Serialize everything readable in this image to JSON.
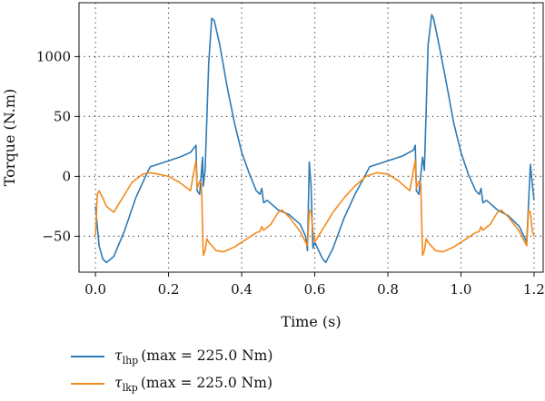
{
  "chart_data": {
    "type": "line",
    "xlabel": "Time (s)",
    "ylabel": "Torque (N.m)",
    "xlim": [
      -0.045,
      1.225
    ],
    "xticks": [
      0.0,
      0.2,
      0.4,
      0.6,
      0.8,
      1.0,
      1.2
    ],
    "xtick_labels": [
      "0.0",
      "0.2",
      "0.4",
      "0.6",
      "0.8",
      "1.0",
      "1.2"
    ],
    "yticks": [
      -50,
      0,
      50,
      1000
    ],
    "ytick_labels": [
      "−50",
      "0",
      "50",
      "1000"
    ],
    "ylim_display": [
      -80,
      145
    ],
    "y_axis_note": "top tick is printed as 1000 but sits where 100 would be",
    "grid": true,
    "legend_position": "below",
    "series": [
      {
        "name": "lhp",
        "legend_symbol": "τ",
        "legend_subscript": "lhp",
        "legend_suffix": "(max = 225.0 Nm)",
        "color": "#2E7AB5",
        "points": [
          [
            0.0,
            -25
          ],
          [
            0.01,
            -58
          ],
          [
            0.02,
            -69
          ],
          [
            0.03,
            -72
          ],
          [
            0.05,
            -67
          ],
          [
            0.08,
            -45
          ],
          [
            0.11,
            -18
          ],
          [
            0.14,
            2
          ],
          [
            0.15,
            8
          ],
          [
            0.17,
            10
          ],
          [
            0.2,
            13
          ],
          [
            0.23,
            16
          ],
          [
            0.26,
            20
          ],
          [
            0.275,
            26
          ],
          [
            0.278,
            -12
          ],
          [
            0.285,
            -15
          ],
          [
            0.293,
            16
          ],
          [
            0.295,
            -8
          ],
          [
            0.3,
            5
          ],
          [
            0.31,
            95
          ],
          [
            0.318,
            132
          ],
          [
            0.325,
            130
          ],
          [
            0.34,
            110
          ],
          [
            0.36,
            75
          ],
          [
            0.38,
            45
          ],
          [
            0.4,
            20
          ],
          [
            0.42,
            3
          ],
          [
            0.44,
            -12
          ],
          [
            0.45,
            -15
          ],
          [
            0.455,
            -10
          ],
          [
            0.46,
            -22
          ],
          [
            0.47,
            -20
          ],
          [
            0.5,
            -28
          ],
          [
            0.53,
            -32
          ],
          [
            0.56,
            -40
          ],
          [
            0.575,
            -50
          ],
          [
            0.58,
            -62
          ],
          [
            0.585,
            12
          ],
          [
            0.59,
            -8
          ],
          [
            0.595,
            -60
          ],
          [
            0.6,
            -55
          ],
          [
            0.62,
            -68
          ],
          [
            0.63,
            -72
          ],
          [
            0.65,
            -60
          ],
          [
            0.68,
            -35
          ],
          [
            0.71,
            -15
          ],
          [
            0.74,
            2
          ],
          [
            0.75,
            8
          ],
          [
            0.77,
            10
          ],
          [
            0.8,
            13
          ],
          [
            0.84,
            17
          ],
          [
            0.87,
            22
          ],
          [
            0.875,
            26
          ],
          [
            0.878,
            -12
          ],
          [
            0.885,
            -15
          ],
          [
            0.895,
            16
          ],
          [
            0.9,
            5
          ],
          [
            0.91,
            110
          ],
          [
            0.92,
            135
          ],
          [
            0.925,
            132
          ],
          [
            0.94,
            110
          ],
          [
            0.96,
            78
          ],
          [
            0.98,
            45
          ],
          [
            1.0,
            20
          ],
          [
            1.02,
            2
          ],
          [
            1.04,
            -12
          ],
          [
            1.05,
            -15
          ],
          [
            1.055,
            -10
          ],
          [
            1.06,
            -22
          ],
          [
            1.07,
            -20
          ],
          [
            1.1,
            -28
          ],
          [
            1.13,
            -33
          ],
          [
            1.16,
            -42
          ],
          [
            1.18,
            -55
          ],
          [
            1.19,
            10
          ],
          [
            1.195,
            -5
          ],
          [
            1.2,
            -20
          ]
        ]
      },
      {
        "name": "lkp",
        "legend_symbol": "τ",
        "legend_subscript": "lkp",
        "legend_suffix": "(max = 225.0 Nm)",
        "color": "#F28A1E",
        "points": [
          [
            0.0,
            -50
          ],
          [
            0.005,
            -15
          ],
          [
            0.01,
            -12
          ],
          [
            0.02,
            -18
          ],
          [
            0.03,
            -25
          ],
          [
            0.05,
            -30
          ],
          [
            0.07,
            -20
          ],
          [
            0.1,
            -5
          ],
          [
            0.13,
            2
          ],
          [
            0.15,
            3
          ],
          [
            0.17,
            2
          ],
          [
            0.2,
            0
          ],
          [
            0.23,
            -5
          ],
          [
            0.26,
            -12
          ],
          [
            0.27,
            5
          ],
          [
            0.275,
            13
          ],
          [
            0.278,
            -10
          ],
          [
            0.285,
            -4
          ],
          [
            0.29,
            -6
          ],
          [
            0.295,
            -66
          ],
          [
            0.3,
            -62
          ],
          [
            0.305,
            -52
          ],
          [
            0.31,
            -55
          ],
          [
            0.33,
            -62
          ],
          [
            0.35,
            -63
          ],
          [
            0.38,
            -59
          ],
          [
            0.41,
            -53
          ],
          [
            0.44,
            -47
          ],
          [
            0.45,
            -46
          ],
          [
            0.455,
            -42
          ],
          [
            0.46,
            -45
          ],
          [
            0.48,
            -40
          ],
          [
            0.5,
            -30
          ],
          [
            0.51,
            -28
          ],
          [
            0.53,
            -34
          ],
          [
            0.56,
            -46
          ],
          [
            0.58,
            -58
          ],
          [
            0.585,
            -28
          ],
          [
            0.59,
            -30
          ],
          [
            0.595,
            -45
          ],
          [
            0.6,
            -55
          ],
          [
            0.61,
            -50
          ],
          [
            0.63,
            -40
          ],
          [
            0.65,
            -30
          ],
          [
            0.68,
            -18
          ],
          [
            0.71,
            -8
          ],
          [
            0.74,
            0
          ],
          [
            0.77,
            3
          ],
          [
            0.8,
            2
          ],
          [
            0.83,
            -4
          ],
          [
            0.86,
            -12
          ],
          [
            0.87,
            5
          ],
          [
            0.875,
            13
          ],
          [
            0.878,
            -10
          ],
          [
            0.885,
            -4
          ],
          [
            0.89,
            -6
          ],
          [
            0.895,
            -66
          ],
          [
            0.9,
            -62
          ],
          [
            0.905,
            -52
          ],
          [
            0.91,
            -55
          ],
          [
            0.93,
            -62
          ],
          [
            0.95,
            -63
          ],
          [
            0.98,
            -59
          ],
          [
            1.01,
            -53
          ],
          [
            1.04,
            -47
          ],
          [
            1.05,
            -46
          ],
          [
            1.055,
            -42
          ],
          [
            1.06,
            -45
          ],
          [
            1.08,
            -40
          ],
          [
            1.1,
            -30
          ],
          [
            1.11,
            -28
          ],
          [
            1.13,
            -34
          ],
          [
            1.16,
            -46
          ],
          [
            1.18,
            -58
          ],
          [
            1.185,
            -28
          ],
          [
            1.19,
            -30
          ],
          [
            1.195,
            -45
          ],
          [
            1.2,
            -50
          ]
        ]
      }
    ]
  }
}
